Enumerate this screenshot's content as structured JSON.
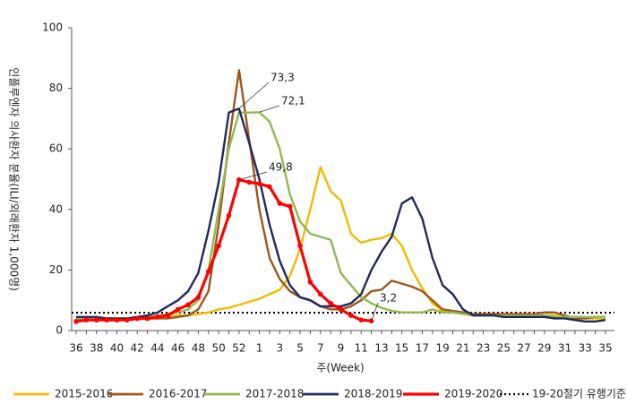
{
  "chart_data": {
    "type": "line",
    "y_label": "인플루엔자 의사환자 분율(ILI/외래환자 1,000명)",
    "x_label": "주(Week)",
    "categories": [
      "36",
      null,
      "38",
      null,
      "40",
      null,
      "42",
      null,
      "44",
      null,
      "46",
      null,
      "48",
      null,
      "50",
      null,
      "52",
      null,
      "1",
      null,
      "3",
      null,
      "5",
      null,
      "7",
      null,
      "9",
      null,
      "11",
      null,
      "13",
      null,
      "15",
      null,
      "17",
      null,
      "19",
      null,
      "21",
      null,
      "23",
      null,
      "25",
      null,
      "27",
      null,
      "29",
      null,
      "31",
      null,
      "33",
      null,
      "35"
    ],
    "ylim": [
      0,
      100
    ],
    "yticks": [
      0,
      20,
      40,
      60,
      80,
      100
    ],
    "series": [
      {
        "name": "2015-2016",
        "color": "#f5b800",
        "values": [
          4,
          4,
          4,
          4,
          4,
          4,
          4,
          4,
          4,
          4.5,
          5,
          5,
          5.5,
          6,
          7,
          7.5,
          8.5,
          9.5,
          10.5,
          12,
          13.5,
          18,
          27,
          40,
          54,
          46,
          43,
          32,
          29,
          30,
          30.5,
          32,
          28,
          20,
          14,
          9,
          6.5,
          6,
          5.5,
          5,
          5,
          5,
          5,
          5,
          5,
          5,
          5,
          5,
          4.5,
          4.5,
          4,
          4,
          4
        ]
      },
      {
        "name": "2016-2017",
        "color": "#a0561c",
        "values": [
          3.5,
          3.5,
          3.5,
          3.5,
          3.5,
          3.5,
          4,
          4,
          4,
          4,
          4.5,
          5,
          7,
          13,
          35,
          62,
          86,
          63,
          40,
          24,
          17,
          13,
          11,
          10,
          8,
          7,
          7,
          8,
          10,
          13,
          13.5,
          16.5,
          15.5,
          14.5,
          13,
          10,
          7,
          6.5,
          6,
          5.5,
          5.5,
          5.5,
          5.5,
          5.5,
          5.5,
          5.5,
          6,
          6,
          5,
          4,
          4,
          4.5,
          4.5
        ]
      },
      {
        "name": "2017-2018",
        "color": "#92b950",
        "values": [
          4,
          4,
          4,
          4,
          4,
          4,
          4,
          4.5,
          5,
          5.5,
          6,
          7,
          10,
          20,
          40,
          60,
          72,
          72,
          72.1,
          69,
          60,
          45,
          36,
          32,
          31,
          30,
          19,
          15,
          11,
          9,
          7.5,
          6.5,
          6,
          6,
          6,
          7,
          6,
          6,
          5.5,
          5,
          5,
          5,
          5,
          5,
          5,
          5,
          5,
          4.5,
          4.5,
          4.5,
          4.5,
          4.5,
          4.5
        ]
      },
      {
        "name": "2018-2019",
        "color": "#1f2a5c",
        "values": [
          4.5,
          4.5,
          4.5,
          4,
          4,
          4,
          4.5,
          5,
          6,
          8,
          10,
          13,
          19,
          33,
          49,
          72,
          73.3,
          62,
          50,
          35,
          23,
          15,
          11,
          10,
          8,
          8,
          8,
          9,
          12,
          20,
          26,
          31,
          42,
          44,
          37,
          24,
          15,
          12,
          7,
          5,
          5,
          5,
          4.5,
          4.5,
          4.5,
          4.5,
          4.5,
          4,
          4,
          3.5,
          3,
          3,
          3.5
        ]
      },
      {
        "name": "2019-2020",
        "color": "#ff0000",
        "values": [
          3,
          3.5,
          3.5,
          3.5,
          3.5,
          3.5,
          4,
          4,
          4.5,
          5,
          7,
          8.5,
          11,
          19.5,
          28,
          38,
          49.8,
          49,
          48.5,
          47.5,
          42,
          41,
          28,
          16,
          12,
          9,
          7,
          5,
          3.5,
          3.2,
          null,
          null,
          null,
          null,
          null,
          null,
          null,
          null,
          null,
          null,
          null,
          null,
          null,
          null,
          null,
          null,
          null,
          null,
          null,
          null,
          null,
          null,
          null
        ]
      }
    ],
    "reference_line": {
      "name": "19-20절기 유행기준",
      "value": 5.9,
      "color": "#000000"
    },
    "annotations": [
      "73,3",
      "72,1",
      "49,8",
      "3,2"
    ]
  }
}
